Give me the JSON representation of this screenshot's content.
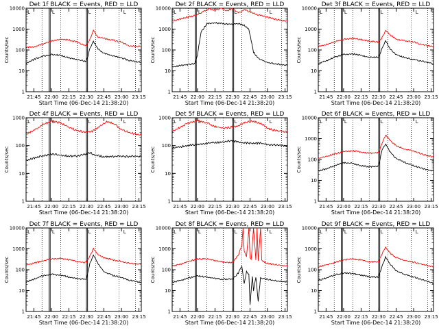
{
  "chart_data": [
    {
      "title": "Det 1f BLACK = Events, RED = LLD",
      "type": "line",
      "xlabel": "Start Time (06-Dec-14 21:38:20)",
      "ylabel": "Counts/sec",
      "yscale": "log",
      "ylim": [
        1,
        10000
      ],
      "y_ticks": [
        "1",
        "10",
        "100",
        "1000",
        "10000"
      ],
      "x_ticks": [
        "21:45",
        "22:00",
        "22:15",
        "22:30",
        "22:45",
        "23:00",
        "23:15"
      ],
      "series": [
        {
          "color": "#ff0000",
          "x": [
            "21:38",
            "21:45",
            "21:52",
            "22:00",
            "22:08",
            "22:15",
            "22:22",
            "22:28",
            "22:30",
            "22:33",
            "22:36",
            "22:40",
            "22:45",
            "22:52",
            "23:00",
            "23:06",
            "23:12",
            "23:17"
          ],
          "values": [
            130,
            140,
            190,
            270,
            330,
            300,
            240,
            170,
            160,
            320,
            830,
            420,
            360,
            300,
            240,
            160,
            150,
            150
          ]
        },
        {
          "color": "#000000",
          "x": [
            "21:38",
            "21:45",
            "21:52",
            "22:00",
            "22:08",
            "22:15",
            "22:22",
            "22:28",
            "22:30",
            "22:33",
            "22:36",
            "22:40",
            "22:45",
            "22:52",
            "23:00",
            "23:06",
            "23:12",
            "23:17"
          ],
          "values": [
            22,
            35,
            50,
            60,
            55,
            42,
            35,
            30,
            28,
            120,
            260,
            110,
            70,
            55,
            42,
            32,
            28,
            25
          ]
        }
      ]
    },
    {
      "title": "Det 2f BLACK = Events, RED = LLD",
      "type": "line",
      "xlabel": "Start Time (06-Dec-14 21:38:20)",
      "ylabel": "Counts/sec",
      "yscale": "log",
      "ylim": [
        1,
        10000
      ],
      "y_ticks": [
        "1",
        "10",
        "100",
        "1000",
        "10000"
      ],
      "x_ticks": [
        "21:45",
        "22:00",
        "22:15",
        "22:30",
        "22:45",
        "23:00",
        "23:15"
      ],
      "series": [
        {
          "color": "#ff0000",
          "x": [
            "21:38",
            "21:45",
            "21:52",
            "22:00",
            "22:05",
            "22:10",
            "22:15",
            "22:20",
            "22:25",
            "22:30",
            "22:35",
            "22:40",
            "22:45",
            "22:52",
            "23:00",
            "23:06",
            "23:12",
            "23:17"
          ],
          "values": [
            2400,
            3000,
            3800,
            4800,
            7000,
            9500,
            8000,
            9800,
            7500,
            9800,
            6000,
            8500,
            6500,
            4800,
            3800,
            3000,
            2600,
            2400
          ]
        },
        {
          "color": "#000000",
          "x": [
            "21:38",
            "21:45",
            "21:52",
            "21:58",
            "22:00",
            "22:03",
            "22:08",
            "22:15",
            "22:22",
            "22:30",
            "22:35",
            "22:40",
            "22:44",
            "22:48",
            "22:52",
            "23:00",
            "23:06",
            "23:12",
            "23:17"
          ],
          "values": [
            15,
            18,
            20,
            22,
            60,
            700,
            1800,
            2000,
            1800,
            1700,
            1800,
            1500,
            1000,
            80,
            40,
            25,
            22,
            20,
            18
          ]
        }
      ]
    },
    {
      "title": "Det 3f BLACK = Events, RED = LLD",
      "type": "line",
      "xlabel": "Start Time (06-Dec-14 21:38:20)",
      "ylabel": "Counts/sec",
      "yscale": "log",
      "ylim": [
        1,
        10000
      ],
      "y_ticks": [
        "1",
        "10",
        "100",
        "1000",
        "10000"
      ],
      "x_ticks": [
        "21:45",
        "22:00",
        "22:15",
        "22:30",
        "22:45",
        "23:00",
        "23:15"
      ],
      "series": [
        {
          "color": "#ff0000",
          "x": [
            "21:38",
            "21:45",
            "21:52",
            "22:00",
            "22:08",
            "22:15",
            "22:22",
            "22:30",
            "22:33",
            "22:36",
            "22:40",
            "22:45",
            "22:52",
            "23:00",
            "23:06",
            "23:12",
            "23:17"
          ],
          "values": [
            140,
            180,
            240,
            320,
            360,
            320,
            260,
            240,
            400,
            850,
            520,
            330,
            280,
            240,
            190,
            160,
            150
          ]
        },
        {
          "color": "#000000",
          "x": [
            "21:38",
            "21:45",
            "21:52",
            "22:00",
            "22:08",
            "22:15",
            "22:22",
            "22:30",
            "22:33",
            "22:36",
            "22:40",
            "22:45",
            "22:52",
            "23:00",
            "23:06",
            "23:12",
            "23:17"
          ],
          "values": [
            22,
            30,
            45,
            60,
            65,
            55,
            45,
            45,
            120,
            280,
            110,
            60,
            45,
            35,
            30,
            25,
            22
          ]
        }
      ]
    },
    {
      "title": "Det 4f BLACK = Events, RED = LLD",
      "type": "line",
      "xlabel": "Start Time (06-Dec-14 21:38:20)",
      "ylabel": "Counts/sec",
      "yscale": "log",
      "ylim": [
        1,
        1000
      ],
      "y_ticks": [
        "1",
        "10",
        "100",
        "1000"
      ],
      "x_ticks": [
        "21:45",
        "22:00",
        "22:15",
        "22:30",
        "22:45",
        "23:00",
        "23:15"
      ],
      "series": [
        {
          "color": "#ff0000",
          "x": [
            "21:38",
            "21:45",
            "21:52",
            "22:00",
            "22:08",
            "22:15",
            "22:22",
            "22:28",
            "22:35",
            "22:42",
            "22:48",
            "22:55",
            "23:00",
            "23:06",
            "23:12",
            "23:17"
          ],
          "values": [
            250,
            350,
            550,
            750,
            650,
            450,
            350,
            300,
            330,
            500,
            750,
            550,
            380,
            300,
            260,
            250
          ]
        },
        {
          "color": "#000000",
          "x": [
            "21:38",
            "21:45",
            "21:52",
            "22:00",
            "22:08",
            "22:15",
            "22:22",
            "22:28",
            "22:33",
            "22:38",
            "22:45",
            "22:52",
            "23:00",
            "23:06",
            "23:12",
            "23:17"
          ],
          "values": [
            30,
            35,
            42,
            50,
            45,
            42,
            42,
            48,
            55,
            45,
            40,
            40,
            42,
            40,
            42,
            40
          ]
        }
      ]
    },
    {
      "title": "Det 5f BLACK = Events, RED = LLD",
      "type": "line",
      "xlabel": "Start Time (06-Dec-14 21:38:20)",
      "ylabel": "Counts/sec",
      "yscale": "log",
      "ylim": [
        1,
        1000
      ],
      "y_ticks": [
        "1",
        "10",
        "100",
        "1000"
      ],
      "x_ticks": [
        "21:45",
        "22:00",
        "22:15",
        "22:30",
        "22:45",
        "23:00",
        "23:15"
      ],
      "series": [
        {
          "color": "#ff0000",
          "x": [
            "21:38",
            "21:45",
            "21:52",
            "22:00",
            "22:08",
            "22:15",
            "22:22",
            "22:28",
            "22:35",
            "22:42",
            "22:48",
            "22:55",
            "23:00",
            "23:06",
            "23:12",
            "23:17"
          ],
          "values": [
            320,
            450,
            650,
            800,
            650,
            480,
            420,
            450,
            520,
            700,
            750,
            600,
            420,
            350,
            320,
            310
          ]
        },
        {
          "color": "#000000",
          "x": [
            "21:38",
            "21:45",
            "21:52",
            "22:00",
            "22:08",
            "22:15",
            "22:22",
            "22:28",
            "22:35",
            "22:42",
            "22:48",
            "22:55",
            "23:00",
            "23:06",
            "23:12",
            "23:17"
          ],
          "values": [
            80,
            90,
            100,
            110,
            120,
            130,
            135,
            150,
            135,
            125,
            120,
            120,
            110,
            105,
            100,
            95
          ]
        }
      ]
    },
    {
      "title": "Det 6f BLACK = Events, RED = LLD",
      "type": "line",
      "xlabel": "Start Time (06-Dec-14 21:38:20)",
      "ylabel": "Counts/sec",
      "yscale": "log",
      "ylim": [
        1,
        10000
      ],
      "y_ticks": [
        "1",
        "10",
        "100",
        "1000",
        "10000"
      ],
      "x_ticks": [
        "21:45",
        "22:00",
        "22:15",
        "22:30",
        "22:45",
        "23:00",
        "23:15"
      ],
      "series": [
        {
          "color": "#ff0000",
          "x": [
            "21:38",
            "21:45",
            "21:52",
            "22:00",
            "22:08",
            "22:15",
            "22:22",
            "22:30",
            "22:33",
            "22:36",
            "22:40",
            "22:45",
            "22:52",
            "23:00",
            "23:06",
            "23:12",
            "23:17"
          ],
          "values": [
            110,
            140,
            180,
            240,
            260,
            230,
            200,
            210,
            600,
            1500,
            800,
            450,
            320,
            250,
            190,
            150,
            130
          ]
        },
        {
          "color": "#000000",
          "x": [
            "21:38",
            "21:45",
            "21:52",
            "22:00",
            "22:08",
            "22:15",
            "22:22",
            "22:30",
            "22:33",
            "22:36",
            "22:40",
            "22:45",
            "22:52",
            "23:00",
            "23:06",
            "23:12",
            "23:17"
          ],
          "values": [
            28,
            35,
            50,
            70,
            65,
            50,
            45,
            48,
            300,
            550,
            220,
            110,
            75,
            50,
            40,
            32,
            28
          ]
        }
      ]
    },
    {
      "title": "Det 7f BLACK = Events, RED = LLD",
      "type": "line",
      "xlabel": "Start Time (06-Dec-14 21:38:20)",
      "ylabel": "Counts/sec",
      "yscale": "log",
      "ylim": [
        1,
        10000
      ],
      "y_ticks": [
        "1",
        "10",
        "100",
        "1000",
        "10000"
      ],
      "x_ticks": [
        "21:45",
        "22:00",
        "22:15",
        "22:30",
        "22:45",
        "23:00",
        "23:15"
      ],
      "series": [
        {
          "color": "#ff0000",
          "x": [
            "21:38",
            "21:45",
            "21:52",
            "22:00",
            "22:08",
            "22:15",
            "22:22",
            "22:28",
            "22:30",
            "22:33",
            "22:36",
            "22:40",
            "22:45",
            "22:52",
            "23:00",
            "23:06",
            "23:12",
            "23:17"
          ],
          "values": [
            170,
            200,
            260,
            330,
            350,
            300,
            250,
            220,
            220,
            450,
            1000,
            520,
            380,
            300,
            250,
            210,
            190,
            180
          ]
        },
        {
          "color": "#000000",
          "x": [
            "21:38",
            "21:45",
            "21:52",
            "22:00",
            "22:08",
            "22:15",
            "22:22",
            "22:28",
            "22:30",
            "22:33",
            "22:36",
            "22:40",
            "22:45",
            "22:52",
            "23:00",
            "23:06",
            "23:12",
            "23:17"
          ],
          "values": [
            25,
            35,
            50,
            60,
            55,
            45,
            38,
            35,
            35,
            200,
            500,
            200,
            80,
            55,
            42,
            32,
            28,
            25
          ]
        }
      ]
    },
    {
      "title": "Det 8f BLACK = Events, RED = LLD",
      "type": "line",
      "xlabel": "Start Time (06-Dec-14 21:38:20)",
      "ylabel": "Counts/sec",
      "yscale": "log",
      "ylim": [
        1,
        10000
      ],
      "y_ticks": [
        "1",
        "10",
        "100",
        "1000",
        "10000"
      ],
      "x_ticks": [
        "21:45",
        "22:00",
        "22:15",
        "22:30",
        "22:45",
        "23:00",
        "23:15"
      ],
      "series": [
        {
          "color": "#ff0000",
          "x": [
            "21:38",
            "21:45",
            "21:52",
            "22:00",
            "22:08",
            "22:15",
            "22:22",
            "22:30",
            "22:35",
            "22:38",
            "22:39",
            "22:40",
            "22:42",
            "22:44",
            "22:45",
            "22:46",
            "22:48",
            "22:50",
            "22:51",
            "22:52",
            "22:54",
            "22:55",
            "22:56",
            "23:00",
            "23:06",
            "23:12",
            "23:17"
          ],
          "values": [
            150,
            180,
            250,
            320,
            330,
            280,
            230,
            220,
            500,
            1500,
            10000,
            800,
            400,
            10000,
            350,
            300,
            10000,
            300,
            10000,
            280,
            10000,
            280,
            250,
            200,
            180,
            160,
            150
          ]
        },
        {
          "color": "#000000",
          "x": [
            "21:38",
            "21:45",
            "21:52",
            "22:00",
            "22:08",
            "22:15",
            "22:22",
            "22:30",
            "22:35",
            "22:38",
            "22:40",
            "22:42",
            "22:44",
            "22:45",
            "22:47",
            "22:48",
            "22:50",
            "22:52",
            "22:54",
            "23:00",
            "23:06",
            "23:12",
            "23:17"
          ],
          "values": [
            25,
            30,
            40,
            50,
            45,
            38,
            35,
            35,
            70,
            150,
            20,
            80,
            60,
            2,
            50,
            10,
            45,
            3,
            40,
            35,
            30,
            27,
            25
          ]
        }
      ]
    },
    {
      "title": "Det 9f BLACK = Events, RED = LLD",
      "type": "line",
      "xlabel": "Start Time (06-Dec-14 21:38:20)",
      "ylabel": "Counts/sec",
      "yscale": "log",
      "ylim": [
        1,
        10000
      ],
      "y_ticks": [
        "1",
        "10",
        "100",
        "1000",
        "10000"
      ],
      "x_ticks": [
        "21:45",
        "22:00",
        "22:15",
        "22:30",
        "22:45",
        "23:00",
        "23:15"
      ],
      "series": [
        {
          "color": "#ff0000",
          "x": [
            "21:38",
            "21:45",
            "21:52",
            "22:00",
            "22:08",
            "22:15",
            "22:22",
            "22:30",
            "22:33",
            "22:36",
            "22:40",
            "22:45",
            "22:52",
            "23:00",
            "23:06",
            "23:12",
            "23:17"
          ],
          "values": [
            140,
            170,
            220,
            300,
            330,
            290,
            240,
            240,
            600,
            1200,
            600,
            380,
            280,
            230,
            190,
            160,
            140
          ]
        },
        {
          "color": "#000000",
          "x": [
            "21:38",
            "21:45",
            "21:52",
            "22:00",
            "22:08",
            "22:15",
            "22:22",
            "22:30",
            "22:33",
            "22:36",
            "22:40",
            "22:45",
            "22:52",
            "23:00",
            "23:06",
            "23:12",
            "23:17"
          ],
          "values": [
            30,
            40,
            55,
            70,
            65,
            55,
            45,
            45,
            150,
            400,
            180,
            90,
            60,
            45,
            35,
            28,
            22
          ]
        }
      ]
    }
  ],
  "panels_markers": {
    "vlines_solid": [
      "21:58",
      "21:59",
      "22:30",
      "22:31"
    ],
    "vlines_dotted": [
      "21:52",
      "22:08",
      "22:22",
      "22:38",
      "22:58",
      "23:12"
    ],
    "corner_label": "L"
  }
}
